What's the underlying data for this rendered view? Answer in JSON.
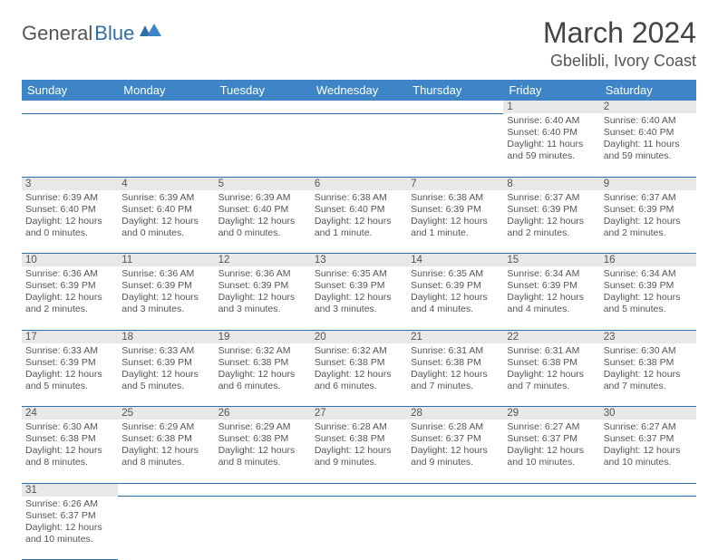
{
  "brand": {
    "part1": "General",
    "part2": "Blue"
  },
  "title": "March 2024",
  "location": "Gbelibli, Ivory Coast",
  "colors": {
    "header_bg": "#3d85c6",
    "header_text": "#ffffff",
    "daynum_bg": "#e8e8e8",
    "rule": "#2f6fa8",
    "body_text": "#555555",
    "page_bg": "#ffffff"
  },
  "dayHeaders": [
    "Sunday",
    "Monday",
    "Tuesday",
    "Wednesday",
    "Thursday",
    "Friday",
    "Saturday"
  ],
  "startDayIndex": 5,
  "daysInMonth": 31,
  "days": {
    "1": {
      "sunrise": "6:40 AM",
      "sunset": "6:40 PM",
      "daylight": "11 hours and 59 minutes."
    },
    "2": {
      "sunrise": "6:40 AM",
      "sunset": "6:40 PM",
      "daylight": "11 hours and 59 minutes."
    },
    "3": {
      "sunrise": "6:39 AM",
      "sunset": "6:40 PM",
      "daylight": "12 hours and 0 minutes."
    },
    "4": {
      "sunrise": "6:39 AM",
      "sunset": "6:40 PM",
      "daylight": "12 hours and 0 minutes."
    },
    "5": {
      "sunrise": "6:39 AM",
      "sunset": "6:40 PM",
      "daylight": "12 hours and 0 minutes."
    },
    "6": {
      "sunrise": "6:38 AM",
      "sunset": "6:40 PM",
      "daylight": "12 hours and 1 minute."
    },
    "7": {
      "sunrise": "6:38 AM",
      "sunset": "6:39 PM",
      "daylight": "12 hours and 1 minute."
    },
    "8": {
      "sunrise": "6:37 AM",
      "sunset": "6:39 PM",
      "daylight": "12 hours and 2 minutes."
    },
    "9": {
      "sunrise": "6:37 AM",
      "sunset": "6:39 PM",
      "daylight": "12 hours and 2 minutes."
    },
    "10": {
      "sunrise": "6:36 AM",
      "sunset": "6:39 PM",
      "daylight": "12 hours and 2 minutes."
    },
    "11": {
      "sunrise": "6:36 AM",
      "sunset": "6:39 PM",
      "daylight": "12 hours and 3 minutes."
    },
    "12": {
      "sunrise": "6:36 AM",
      "sunset": "6:39 PM",
      "daylight": "12 hours and 3 minutes."
    },
    "13": {
      "sunrise": "6:35 AM",
      "sunset": "6:39 PM",
      "daylight": "12 hours and 3 minutes."
    },
    "14": {
      "sunrise": "6:35 AM",
      "sunset": "6:39 PM",
      "daylight": "12 hours and 4 minutes."
    },
    "15": {
      "sunrise": "6:34 AM",
      "sunset": "6:39 PM",
      "daylight": "12 hours and 4 minutes."
    },
    "16": {
      "sunrise": "6:34 AM",
      "sunset": "6:39 PM",
      "daylight": "12 hours and 5 minutes."
    },
    "17": {
      "sunrise": "6:33 AM",
      "sunset": "6:39 PM",
      "daylight": "12 hours and 5 minutes."
    },
    "18": {
      "sunrise": "6:33 AM",
      "sunset": "6:39 PM",
      "daylight": "12 hours and 5 minutes."
    },
    "19": {
      "sunrise": "6:32 AM",
      "sunset": "6:38 PM",
      "daylight": "12 hours and 6 minutes."
    },
    "20": {
      "sunrise": "6:32 AM",
      "sunset": "6:38 PM",
      "daylight": "12 hours and 6 minutes."
    },
    "21": {
      "sunrise": "6:31 AM",
      "sunset": "6:38 PM",
      "daylight": "12 hours and 7 minutes."
    },
    "22": {
      "sunrise": "6:31 AM",
      "sunset": "6:38 PM",
      "daylight": "12 hours and 7 minutes."
    },
    "23": {
      "sunrise": "6:30 AM",
      "sunset": "6:38 PM",
      "daylight": "12 hours and 7 minutes."
    },
    "24": {
      "sunrise": "6:30 AM",
      "sunset": "6:38 PM",
      "daylight": "12 hours and 8 minutes."
    },
    "25": {
      "sunrise": "6:29 AM",
      "sunset": "6:38 PM",
      "daylight": "12 hours and 8 minutes."
    },
    "26": {
      "sunrise": "6:29 AM",
      "sunset": "6:38 PM",
      "daylight": "12 hours and 8 minutes."
    },
    "27": {
      "sunrise": "6:28 AM",
      "sunset": "6:38 PM",
      "daylight": "12 hours and 9 minutes."
    },
    "28": {
      "sunrise": "6:28 AM",
      "sunset": "6:37 PM",
      "daylight": "12 hours and 9 minutes."
    },
    "29": {
      "sunrise": "6:27 AM",
      "sunset": "6:37 PM",
      "daylight": "12 hours and 10 minutes."
    },
    "30": {
      "sunrise": "6:27 AM",
      "sunset": "6:37 PM",
      "daylight": "12 hours and 10 minutes."
    },
    "31": {
      "sunrise": "6:26 AM",
      "sunset": "6:37 PM",
      "daylight": "12 hours and 10 minutes."
    }
  },
  "labels": {
    "sunrise": "Sunrise:",
    "sunset": "Sunset:",
    "daylight": "Daylight:"
  }
}
